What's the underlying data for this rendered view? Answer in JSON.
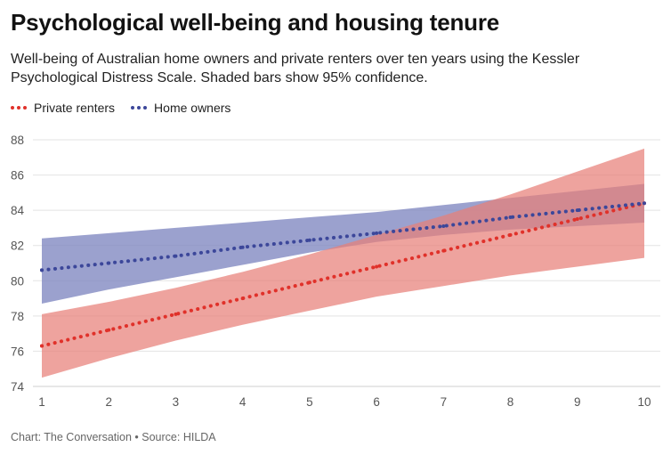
{
  "title": "Psychological well-being and housing tenure",
  "subtitle": "Well-being of Australian home owners and private renters over ten years using the Kessler Psychological Distress Scale. Shaded bars show 95% confidence.",
  "source": "Chart: The Conversation • Source: HILDA",
  "chart_data": {
    "type": "line",
    "x": [
      1,
      2,
      3,
      4,
      5,
      6,
      7,
      8,
      9,
      10
    ],
    "xlim": [
      1,
      10
    ],
    "ylim": [
      74,
      88
    ],
    "xticks": [
      1,
      2,
      3,
      4,
      5,
      6,
      7,
      8,
      9,
      10
    ],
    "yticks": [
      74,
      76,
      78,
      80,
      82,
      84,
      86,
      88
    ],
    "grid": "horizontal",
    "legend_position": "top-left",
    "series": [
      {
        "name": "Private renters",
        "color": "#e0312a",
        "band_color": "#e88078",
        "values": [
          76.3,
          77.2,
          78.1,
          79.0,
          79.9,
          80.8,
          81.7,
          82.6,
          83.5,
          84.4
        ],
        "ci_low": [
          74.5,
          75.6,
          76.6,
          77.5,
          78.3,
          79.1,
          79.7,
          80.3,
          80.8,
          81.3
        ],
        "ci_high": [
          78.1,
          78.8,
          79.6,
          80.5,
          81.5,
          82.6,
          83.7,
          84.9,
          86.2,
          87.5
        ]
      },
      {
        "name": "Home owners",
        "color": "#3c479a",
        "band_color": "#7f86c0",
        "values": [
          80.6,
          81.0,
          81.4,
          81.9,
          82.3,
          82.7,
          83.1,
          83.6,
          84.0,
          84.4
        ],
        "ci_low": [
          78.7,
          79.5,
          80.2,
          80.9,
          81.6,
          82.2,
          82.6,
          82.9,
          83.1,
          83.3
        ],
        "ci_high": [
          82.4,
          82.7,
          83.0,
          83.3,
          83.6,
          83.9,
          84.3,
          84.7,
          85.1,
          85.5
        ]
      }
    ]
  }
}
